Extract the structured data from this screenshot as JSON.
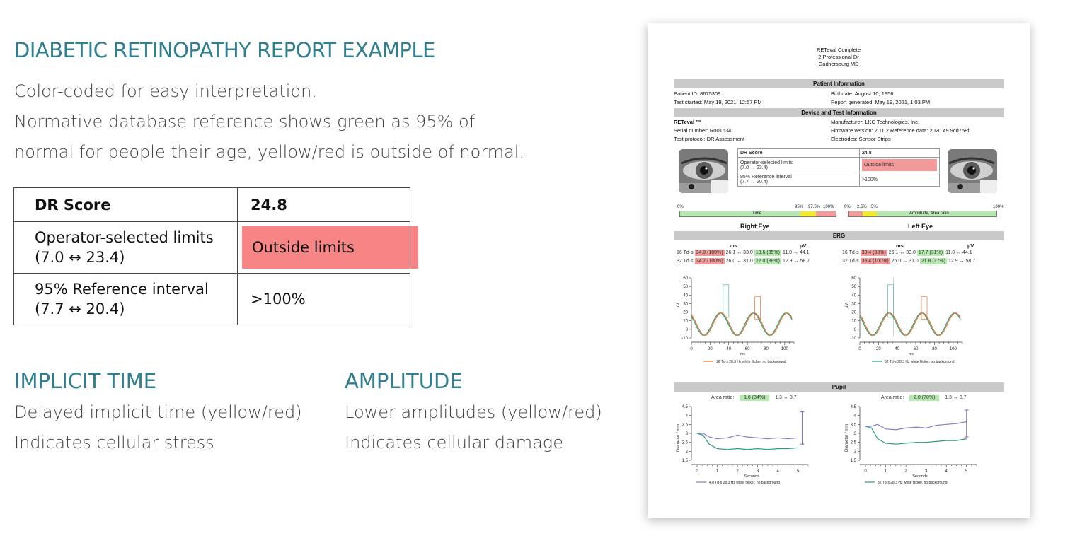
{
  "page": {
    "title": "DIABETIC RETINOPATHY REPORT EXAMPLE",
    "intro_lines": [
      "Color-coded for easy interpretation.",
      "Normative database reference shows green as 95% of",
      "normal for people their age, yellow/red is outside of normal."
    ]
  },
  "dr_table": {
    "score_label": "DR Score",
    "score_value": "24.8",
    "operator_label_1": "Operator-selected limits",
    "operator_label_2": "(7.0 ↔ 23.4)",
    "operator_value": "Outside limits",
    "reference_label_1": "95% Reference interval",
    "reference_label_2": "(7.7 ↔ 20.4)",
    "reference_value": ">100%",
    "outside_color": "#f78585"
  },
  "implicit_time": {
    "heading": "IMPLICIT TIME",
    "line1": "Delayed implicit time (yellow/red)",
    "line2": "Indicates cellular stress"
  },
  "amplitude": {
    "heading": "AMPLITUDE",
    "line1": "Lower amplitudes (yellow/red)",
    "line2": "Indicates cellular damage"
  },
  "report": {
    "header": [
      "RETeval Complete",
      "2 Professional Dr",
      "Gaithersburg MD"
    ],
    "patient_section": "Patient Information",
    "patient_id": "Patient ID: 8675309",
    "birthdate": "Birthdate: August 10, 1956",
    "test_started": "Test started: May 19, 2021, 12:57 PM",
    "report_generated": "Report generated: May 19, 2021, 1:03 PM",
    "device_section": "Device and Test Information",
    "device_name": "RETeval ™",
    "manufacturer": "Manufacturer: LKC Technologies, Inc.",
    "serial": "Serial number: R001634",
    "firmware": "Firmware version: 2.11.2 Reference data: 2020.49 9cd758f",
    "protocol": "Test protocol: DR Assessment",
    "electrodes": "Electrodes: Sensor Strips",
    "mini_score_label": "DR Score",
    "mini_score_value": "24.8",
    "mini_operator_1": "Operator-selected limits",
    "mini_operator_2": "(7.0 ↔ 23.4)",
    "mini_operator_value": "Outside limits",
    "mini_reference_1": "95% Reference interval",
    "mini_reference_2": "(7.7 ↔ 20.4)",
    "mini_reference_value": ">100%",
    "time_scale": {
      "left": "0%",
      "t1": "95%",
      "t2": "97.5%",
      "t3": "100%",
      "label": "Time"
    },
    "amp_scale": {
      "left": "0%",
      "t1": "2.5%",
      "t2": "5%",
      "right": "100%",
      "label": "Amplitude, Area ratio"
    },
    "right_eye": "Right Eye",
    "left_eye": "Left Eye",
    "erg_section": "ERG",
    "ms_label": "ms",
    "uv_label": "µV",
    "erg_right": [
      {
        "td": "16 Td·s",
        "time": "34.0 (100%)",
        "time_ref": "26.1 ↔ 33.0",
        "amp": "18.6 (35%)",
        "amp_ref": "11.0 ↔ 44.1"
      },
      {
        "td": "32 Td·s",
        "time": "34.7 (100%)",
        "time_ref": "26.0 ↔ 31.0",
        "amp": "22.0 (38%)",
        "amp_ref": "12.9 ↔ 58.7"
      }
    ],
    "erg_left": [
      {
        "td": "16 Td·s",
        "time": "33.4 (98%)",
        "time_ref": "26.1 ↔ 33.0",
        "amp": "17.7 (31%)",
        "amp_ref": "11.0 ↔ 44.1"
      },
      {
        "td": "32 Td·s",
        "time": "35.4 (100%)",
        "time_ref": "26.0 ↔ 31.0",
        "amp": "21.8 (37%)",
        "amp_ref": "12.9 ↔ 58.7"
      }
    ],
    "erg_yticks": [
      "60",
      "50",
      "40",
      "30",
      "20",
      "10",
      "0",
      "-10"
    ],
    "erg_xticks": [
      "0",
      "20",
      "40",
      "60",
      "80",
      "100"
    ],
    "erg_ylabel": "µV",
    "erg_xlabel": "ms",
    "erg_legend_right": "16 Td·s 28.3 Hz white flicker, no background",
    "erg_legend_left": "32 Td·s 28.3 Hz white flicker, no background",
    "pupil_section": "Pupil",
    "area_ratio_label": "Area ratio:",
    "area_ratio_right": "1.6 (34%)",
    "area_ratio_right_ref": "1.3 ↔ 3.7",
    "area_ratio_left": "2.0 (70%)",
    "area_ratio_left_ref": "1.3 ↔ 3.7",
    "pupil_yticks": [
      "4.5",
      "4",
      "3.5",
      "3",
      "2.5",
      "2",
      "1.5"
    ],
    "pupil_xticks": [
      "0",
      "1",
      "2",
      "3",
      "4",
      "5"
    ],
    "pupil_ylabel": "Diameter / mm",
    "pupil_xlabel": "Seconds",
    "pupil_legend_right": "4.0 Td·s 28.3 Hz white flicker, no background",
    "pupil_legend_left": "32 Td·s 28.3 Hz white flicker, no background",
    "colors": {
      "red": "#f29a9a",
      "green": "#b6e9b0",
      "yellow": "#f3ea2b",
      "orange": "#e8742c",
      "teal": "#2a9d7a",
      "purple": "#8a7cc7"
    }
  }
}
